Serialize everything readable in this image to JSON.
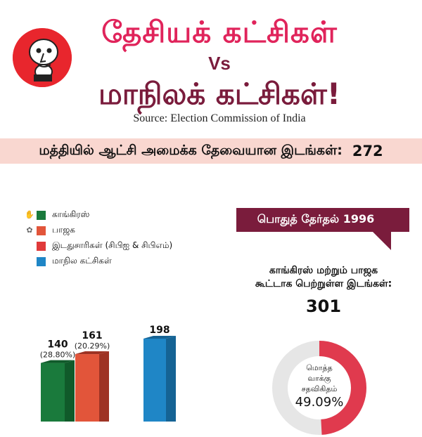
{
  "header": {
    "title_line1": "தேசியக் கட்சிகள்",
    "vs": "Vs",
    "title_line2": "மாநிலக் கட்சிகள்!",
    "source": "Source: Election Commission of India"
  },
  "banner": {
    "text": "மத்தியில் ஆட்சி அமைக்க தேவையான இடங்கள்:",
    "value": "272"
  },
  "election": {
    "label": "பொதுத் தேர்தல் 1996"
  },
  "combined": {
    "text_line1": "காங்கிரஸ் மற்றும் பாஜக",
    "text_line2": "கூட்டாக பெற்றுள்ள இடங்கள்:",
    "value": "301"
  },
  "donut": {
    "label_line1": "மொத்த",
    "label_line2": "வாக்கு",
    "label_line3": "சதவிகிதம்",
    "percent_text": "49.09%",
    "percent_value": 49.09,
    "fill_color": "#e03a4e",
    "track_color": "#e6e6e6"
  },
  "legend": [
    {
      "symbol": "hand-icon",
      "label": "காங்கிரஸ்",
      "color": "#1a7a3c"
    },
    {
      "symbol": "lotus-icon",
      "label": "பாஜக",
      "color": "#e2553a"
    },
    {
      "symbol": "",
      "label": "இடதுசாரிகள் (சிபிஐ & சிபிஎம்)",
      "color": "#e03a3a"
    },
    {
      "symbol": "",
      "label": "மாநில கட்சிகள்",
      "color": "#1f86c6"
    }
  ],
  "chart_data": {
    "type": "bar",
    "title": "பொதுத் தேர்தல் 1996",
    "categories": [
      "காங்கிரஸ்",
      "பாஜக",
      "மாநில கட்சிகள்"
    ],
    "values": [
      140,
      161,
      198
    ],
    "value_labels": [
      "140",
      "161",
      "198"
    ],
    "share_labels": [
      "(28.80%)",
      "(20.29%)",
      ""
    ],
    "colors": [
      "#1a7a3c",
      "#e2553a",
      "#1f86c6"
    ],
    "side_colors": [
      "#105a2a",
      "#9e3324",
      "#156394"
    ],
    "ylim": [
      0,
      198
    ]
  },
  "colors": {
    "title_pink": "#e0245b",
    "title_maroon": "#7a1c3c",
    "banner_bg": "#f9d7d0",
    "ribbon": "#7a1c3c"
  }
}
